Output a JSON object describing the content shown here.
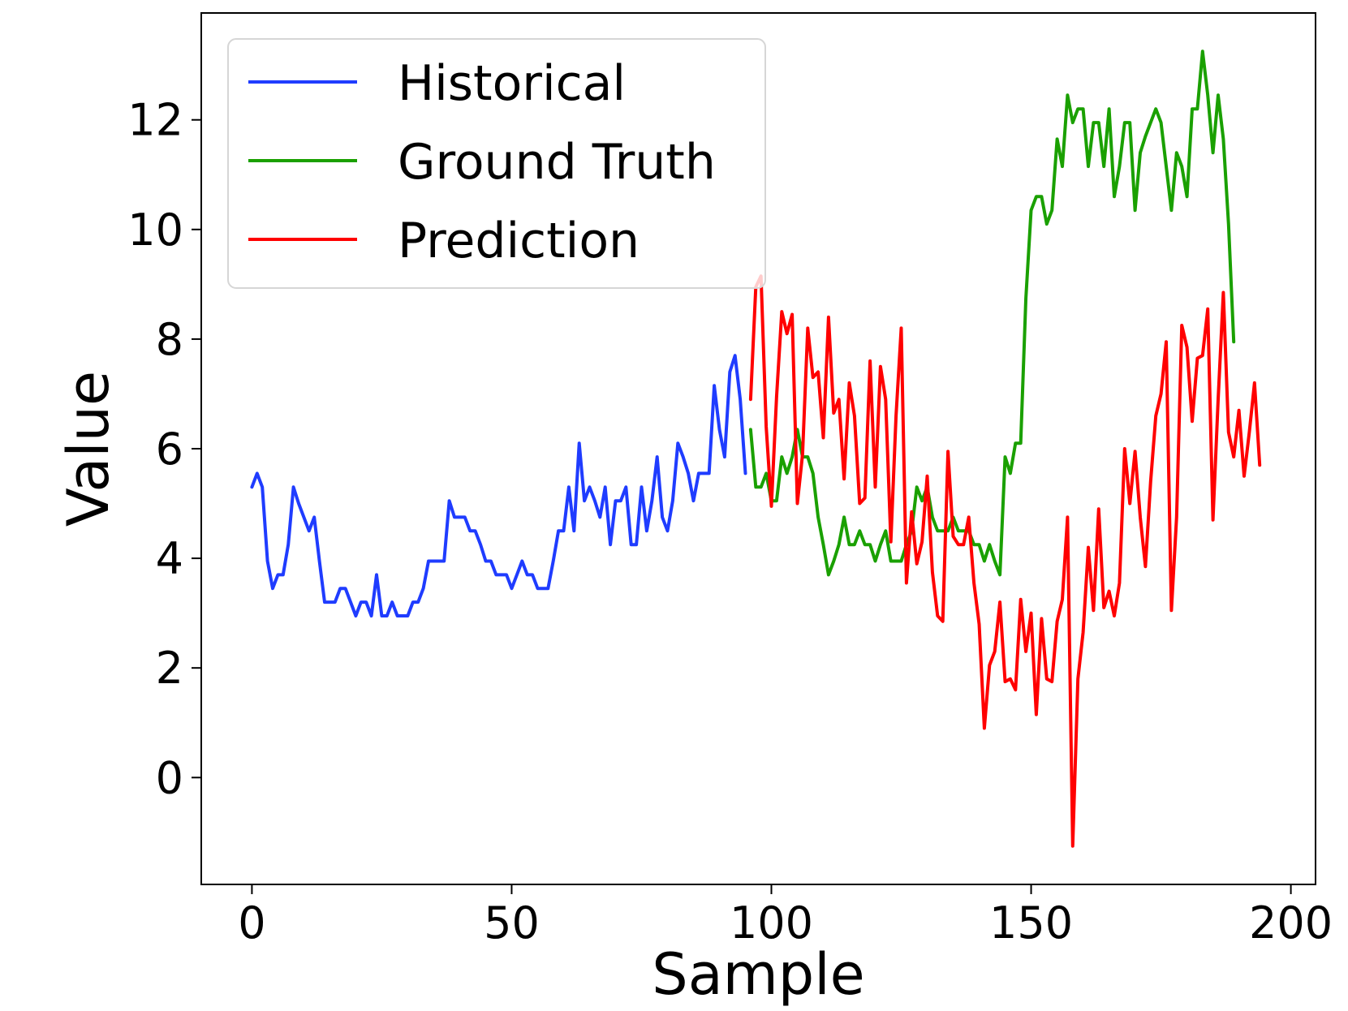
{
  "chart_data": {
    "type": "line",
    "xlabel": "Sample",
    "ylabel": "Value",
    "xlim": [
      -9.75,
      204.75
    ],
    "ylim": [
      -1.95,
      13.95
    ],
    "x_ticks": [
      0,
      50,
      100,
      150,
      200
    ],
    "y_ticks": [
      0,
      2,
      4,
      6,
      8,
      10,
      12
    ],
    "grid": false,
    "legend_position": "upper-left",
    "series": [
      {
        "name": "Historical",
        "color": "#1f3cff",
        "x_start": 0,
        "values": [
          5.3,
          5.55,
          5.3,
          3.95,
          3.45,
          3.7,
          3.7,
          4.25,
          5.3,
          5.0,
          4.75,
          4.5,
          4.75,
          3.95,
          3.2,
          3.2,
          3.2,
          3.45,
          3.45,
          3.2,
          2.95,
          3.2,
          3.2,
          2.95,
          3.7,
          2.95,
          2.95,
          3.2,
          2.95,
          2.95,
          2.95,
          3.2,
          3.2,
          3.45,
          3.95,
          3.95,
          3.95,
          3.95,
          5.05,
          4.75,
          4.75,
          4.75,
          4.5,
          4.5,
          4.25,
          3.95,
          3.95,
          3.7,
          3.7,
          3.7,
          3.45,
          3.7,
          3.95,
          3.7,
          3.7,
          3.45,
          3.45,
          3.45,
          3.95,
          4.5,
          4.5,
          5.3,
          4.5,
          6.1,
          5.05,
          5.3,
          5.05,
          4.75,
          5.3,
          4.25,
          5.05,
          5.05,
          5.3,
          4.25,
          4.25,
          5.3,
          4.5,
          5.05,
          5.85,
          4.75,
          4.5,
          5.05,
          6.1,
          5.85,
          5.55,
          5.05,
          5.55,
          5.55,
          5.55,
          7.15,
          6.35,
          5.85,
          7.4,
          7.7,
          6.9,
          5.55
        ]
      },
      {
        "name": "Ground Truth",
        "color": "#1aa000",
        "x_start": 96,
        "values": [
          6.35,
          5.3,
          5.3,
          5.55,
          5.05,
          5.05,
          5.85,
          5.55,
          5.85,
          6.35,
          5.85,
          5.85,
          5.55,
          4.75,
          4.25,
          3.7,
          3.95,
          4.25,
          4.75,
          4.25,
          4.25,
          4.5,
          4.25,
          4.25,
          3.95,
          4.25,
          4.5,
          3.95,
          3.95,
          3.95,
          4.25,
          4.5,
          5.3,
          5.05,
          5.3,
          4.75,
          4.5,
          4.5,
          4.5,
          4.75,
          4.5,
          4.5,
          4.5,
          4.25,
          4.25,
          3.95,
          4.25,
          3.95,
          3.7,
          5.85,
          5.55,
          6.1,
          6.1,
          8.75,
          10.35,
          10.6,
          10.6,
          10.1,
          10.35,
          11.65,
          11.15,
          12.45,
          11.95,
          12.2,
          12.2,
          11.15,
          11.95,
          11.95,
          11.15,
          12.2,
          10.6,
          11.15,
          11.95,
          11.95,
          10.35,
          11.4,
          11.7,
          11.95,
          12.2,
          11.95,
          11.15,
          10.35,
          11.4,
          11.15,
          10.6,
          12.2,
          12.2,
          13.25,
          12.45,
          11.4,
          12.45,
          11.65,
          10.1,
          7.95
        ]
      },
      {
        "name": "Prediction",
        "color": "#ff0000",
        "x_start": 96,
        "values": [
          6.9,
          8.95,
          9.15,
          6.4,
          4.95,
          6.95,
          8.5,
          8.1,
          8.45,
          5.0,
          5.9,
          8.2,
          7.3,
          7.4,
          6.2,
          8.4,
          6.65,
          6.9,
          5.45,
          7.2,
          6.6,
          5.0,
          5.1,
          7.6,
          5.3,
          7.5,
          6.9,
          4.3,
          6.6,
          8.2,
          3.55,
          4.85,
          3.9,
          4.3,
          5.5,
          3.75,
          2.95,
          2.85,
          5.95,
          4.4,
          4.25,
          4.25,
          4.75,
          3.55,
          2.8,
          0.9,
          2.05,
          2.3,
          3.2,
          1.75,
          1.8,
          1.6,
          3.25,
          2.3,
          3.0,
          1.15,
          2.9,
          1.8,
          1.75,
          2.85,
          3.25,
          4.75,
          -1.25,
          1.8,
          2.65,
          4.2,
          3.05,
          4.9,
          3.1,
          3.4,
          2.95,
          3.55,
          6.0,
          5.0,
          5.95,
          4.75,
          3.85,
          5.4,
          6.6,
          7.0,
          7.95,
          3.05,
          4.75,
          8.25,
          7.85,
          6.5,
          7.65,
          7.7,
          8.55,
          4.7,
          6.9,
          8.85,
          6.3,
          5.85,
          6.7,
          5.5,
          6.3,
          7.2,
          5.7
        ]
      }
    ]
  }
}
